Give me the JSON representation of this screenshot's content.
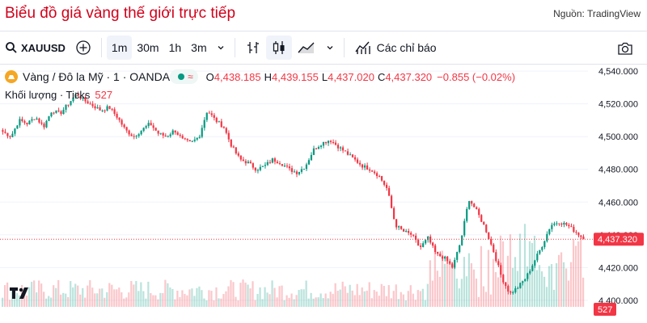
{
  "header": {
    "title": "Biểu đồ giá vàng thế giới trực tiếp",
    "source": "Nguồn: TradingView"
  },
  "toolbar": {
    "symbol": "XAUUSD",
    "intervals": [
      "1m",
      "30m",
      "1h",
      "3m"
    ],
    "indicators_label": "Các chỉ báo"
  },
  "legend": {
    "name": "Vàng / Đô la Mỹ · 1 · OANDA",
    "pill_symbol": "≈",
    "o_label": "O",
    "o": "4,438.185",
    "h_label": "H",
    "h": "4,439.155",
    "l_label": "L",
    "l": "4,437.020",
    "c_label": "C",
    "c": "4,437.320",
    "change": "−0.855 (−0.02%)",
    "volume_label": "Khối lượng · Ticks",
    "volume_value": "527"
  },
  "colors": {
    "up": "#089981",
    "down": "#f23645",
    "title": "#d0021b"
  },
  "chart_data": {
    "type": "candlestick",
    "y_ticks": [
      "4,540.000",
      "4,520.000",
      "4,500.000",
      "4,480.000",
      "4,460.000",
      "4,440.000",
      "4,420.000",
      "4,400.000"
    ],
    "y_tick_values": [
      4540,
      4520,
      4500,
      4480,
      4460,
      4440,
      4420,
      4400
    ],
    "ylim": [
      4396,
      4544
    ],
    "last_price": 4437.32,
    "last_price_label": "4,437.320",
    "last_volume_label": "527",
    "close_path": [
      4503,
      4500,
      4510,
      4508,
      4512,
      4506,
      4516,
      4514,
      4520,
      4526,
      4522,
      4519,
      4516,
      4518,
      4512,
      4504,
      4500,
      4504,
      4508,
      4502,
      4500,
      4504,
      4498,
      4496,
      4500,
      4516,
      4510,
      4506,
      4494,
      4486,
      4484,
      4480,
      4482,
      4486,
      4484,
      4480,
      4478,
      4482,
      4492,
      4496,
      4498,
      4494,
      4490,
      4486,
      4482,
      4480,
      4476,
      4468,
      4446,
      4442,
      4440,
      4432,
      4438,
      4428,
      4426,
      4420,
      4436,
      4462,
      4454,
      4444,
      4430,
      4414,
      4404,
      4408,
      4414,
      4424,
      4434,
      4446,
      4448,
      4446,
      4442,
      4438
    ]
  }
}
